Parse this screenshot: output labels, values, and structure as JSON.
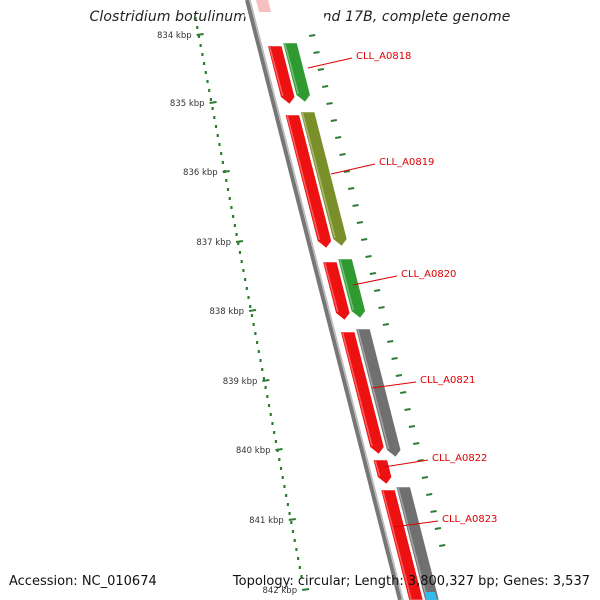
{
  "title": "Clostridium botulinum B str. Eklund 17B, complete genome",
  "footer": {
    "accession": "Accession: NC_010674",
    "summary": "Topology: circular; Length: 3,800,327 bp; Genes: 3,537"
  },
  "colors": {
    "backbone": "#777777",
    "tick": "#2e7d32",
    "label": "#dd0000",
    "forward_red": "#ee1111",
    "green": "#2f9a2f",
    "olive": "#7a8f2a",
    "gray": "#707070",
    "blue": "#33bbee"
  },
  "scale_labels": [
    "834 kbp",
    "835 kbp",
    "836 kbp",
    "837 kbp",
    "838 kbp",
    "839 kbp",
    "840 kbp",
    "841 kbp",
    "842 kbp"
  ],
  "genes": [
    {
      "label": "CLL_A0818",
      "color": "green"
    },
    {
      "label": "CLL_A0819",
      "color": "olive"
    },
    {
      "label": "CLL_A0820",
      "color": "green"
    },
    {
      "label": "CLL_A0821",
      "color": "gray"
    },
    {
      "label": "CLL_A0822",
      "color": "gray"
    },
    {
      "label": "CLL_A0823",
      "color": "gray"
    }
  ]
}
